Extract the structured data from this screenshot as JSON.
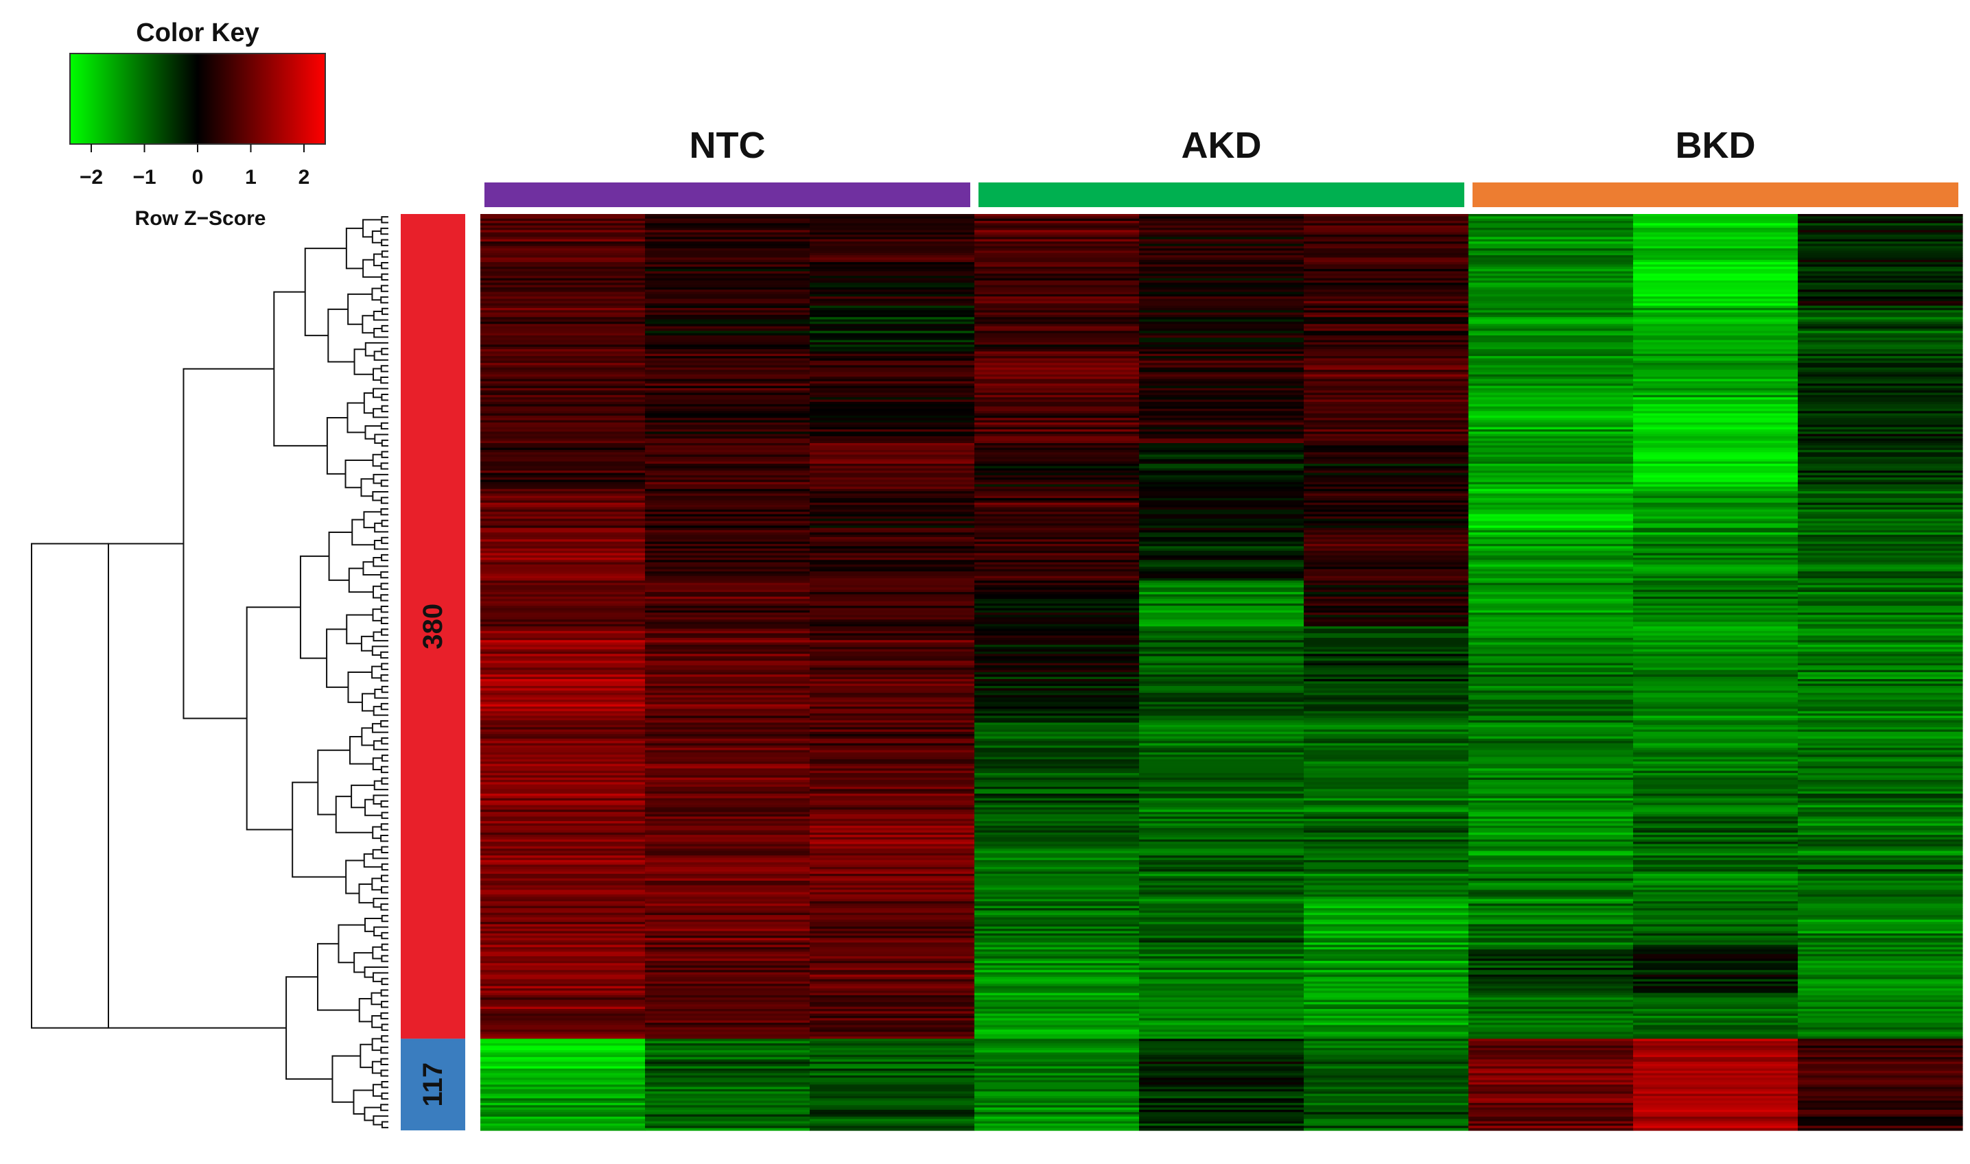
{
  "chart_data": {
    "type": "heatmap",
    "color_key": {
      "title": "Color Key",
      "xlabel": "Row Z−Score",
      "range": [
        -2.4,
        2.4
      ],
      "ticks": [
        -2,
        -1,
        0,
        1,
        2
      ],
      "tick_labels": [
        "−2",
        "−1",
        "0",
        "1",
        "2"
      ],
      "low_color": "#00ff00",
      "mid_color": "#000000",
      "high_color": "#ff0000"
    },
    "groups": [
      {
        "label": "NTC",
        "color": "#7030a0",
        "columns": 3
      },
      {
        "label": "AKD",
        "color": "#00b050",
        "columns": 3
      },
      {
        "label": "BKD",
        "color": "#ed7d31",
        "columns": 3
      }
    ],
    "clusters": [
      {
        "label": "380",
        "genes": 380,
        "color": "#e8202a"
      },
      {
        "label": "117",
        "genes": 117,
        "color": "#3a7dbf"
      }
    ],
    "row_blocks": [
      {
        "cluster": "380",
        "rows": 20,
        "z": [
          0.8,
          0.4,
          0.5,
          0.7,
          0.4,
          0.6,
          -1.2,
          -1.8,
          -0.3
        ]
      },
      {
        "cluster": "380",
        "rows": 20,
        "z": [
          0.6,
          0.3,
          0.2,
          0.6,
          0.2,
          0.5,
          -1.2,
          -2.2,
          -0.2
        ]
      },
      {
        "cluster": "380",
        "rows": 20,
        "z": [
          0.7,
          0.2,
          -0.3,
          0.5,
          0.1,
          0.4,
          -1.3,
          -1.6,
          -0.8
        ]
      },
      {
        "cluster": "380",
        "rows": 20,
        "z": [
          0.6,
          0.5,
          0.4,
          0.9,
          0.3,
          0.7,
          -1.4,
          -1.5,
          -0.6
        ]
      },
      {
        "cluster": "380",
        "rows": 20,
        "z": [
          0.7,
          0.4,
          0.3,
          0.7,
          0.4,
          0.6,
          -1.6,
          -2.0,
          -0.3
        ]
      },
      {
        "cluster": "380",
        "rows": 20,
        "z": [
          0.5,
          0.6,
          0.8,
          0.2,
          -0.3,
          0.1,
          -1.4,
          -2.1,
          -0.5
        ]
      },
      {
        "cluster": "380",
        "rows": 20,
        "z": [
          1.0,
          0.5,
          0.4,
          0.6,
          0.0,
          0.4,
          -1.8,
          -1.4,
          -0.9
        ]
      },
      {
        "cluster": "380",
        "rows": 20,
        "z": [
          1.1,
          0.5,
          0.5,
          0.5,
          -0.4,
          0.5,
          -1.5,
          -1.3,
          -0.9
        ]
      },
      {
        "cluster": "380",
        "rows": 20,
        "z": [
          0.9,
          0.7,
          0.6,
          0.0,
          -1.2,
          0.2,
          -1.4,
          -1.2,
          -1.0
        ]
      },
      {
        "cluster": "380",
        "rows": 20,
        "z": [
          1.3,
          0.9,
          0.7,
          0.1,
          -0.8,
          -0.5,
          -1.2,
          -1.3,
          -1.1
        ]
      },
      {
        "cluster": "380",
        "rows": 20,
        "z": [
          1.4,
          0.9,
          0.7,
          -0.2,
          -0.8,
          -0.6,
          -1.0,
          -1.2,
          -1.2
        ]
      },
      {
        "cluster": "380",
        "rows": 20,
        "z": [
          1.2,
          0.8,
          0.8,
          -0.6,
          -1.0,
          -0.9,
          -1.0,
          -1.1,
          -1.0
        ]
      },
      {
        "cluster": "380",
        "rows": 20,
        "z": [
          1.2,
          0.9,
          0.9,
          -0.7,
          -0.9,
          -1.0,
          -1.2,
          -1.0,
          -1.0
        ]
      },
      {
        "cluster": "380",
        "rows": 20,
        "z": [
          1.0,
          0.8,
          1.1,
          -0.9,
          -1.1,
          -1.0,
          -1.4,
          -1.0,
          -1.1
        ]
      },
      {
        "cluster": "380",
        "rows": 20,
        "z": [
          1.1,
          1.0,
          1.0,
          -1.1,
          -1.0,
          -1.1,
          -1.1,
          -1.1,
          -1.0
        ]
      },
      {
        "cluster": "380",
        "rows": 20,
        "z": [
          1.1,
          1.0,
          0.9,
          -1.0,
          -0.8,
          -1.5,
          -1.0,
          -0.9,
          -1.2
        ]
      },
      {
        "cluster": "380",
        "rows": 20,
        "z": [
          1.2,
          0.9,
          0.9,
          -1.3,
          -1.1,
          -1.4,
          -0.6,
          -0.1,
          -1.2
        ]
      },
      {
        "cluster": "380",
        "rows": 20,
        "z": [
          1.0,
          0.9,
          0.8,
          -1.5,
          -1.2,
          -1.4,
          -1.0,
          -0.9,
          -1.0
        ]
      },
      {
        "cluster": "117",
        "rows": 20,
        "z": [
          -1.9,
          -0.8,
          -0.9,
          -1.1,
          -0.3,
          -0.9,
          1.1,
          1.5,
          0.6
        ]
      },
      {
        "cluster": "117",
        "rows": 20,
        "z": [
          -1.5,
          -1.0,
          -0.7,
          -1.3,
          -0.4,
          -0.8,
          1.0,
          1.7,
          0.5
        ]
      }
    ]
  }
}
